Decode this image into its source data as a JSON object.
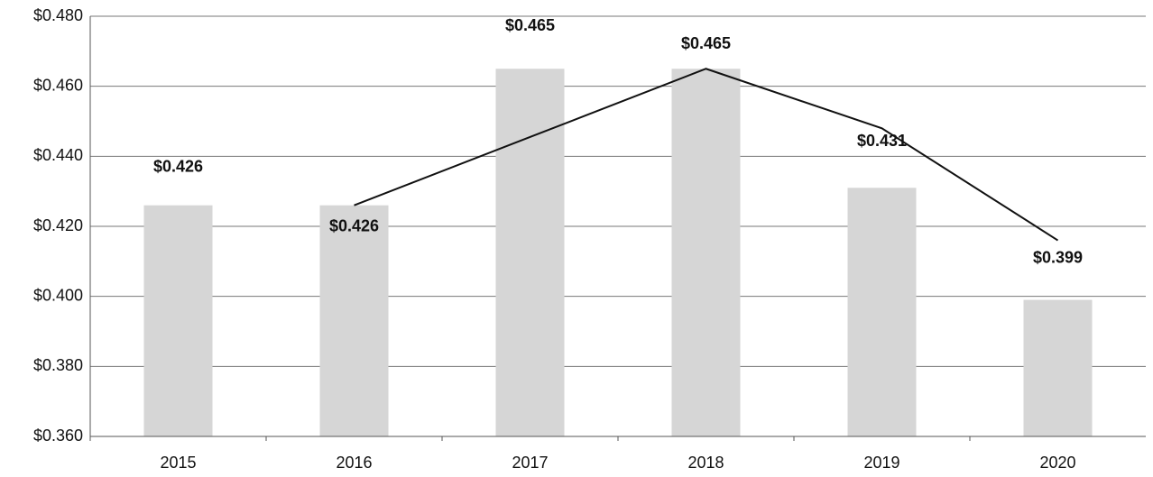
{
  "chart_data": {
    "type": "bar",
    "categories": [
      "2015",
      "2016",
      "2017",
      "2018",
      "2019",
      "2020"
    ],
    "series": [
      {
        "type": "bar",
        "color": "#d6d6d6",
        "values": [
          0.426,
          0.426,
          0.465,
          0.465,
          0.431,
          0.399
        ],
        "value_labels": [
          "$0.426",
          "$0.426",
          "$0.465",
          "$0.465",
          "$0.431",
          "$0.399"
        ]
      },
      {
        "type": "line",
        "color": "#111111",
        "values": [
          null,
          0.426,
          0.4455,
          0.465,
          0.448,
          0.416
        ]
      }
    ],
    "ylim": [
      0.36,
      0.48
    ],
    "yticks": [
      {
        "value": 0.36,
        "label": "$0.360"
      },
      {
        "value": 0.38,
        "label": "$0.380"
      },
      {
        "value": 0.4,
        "label": "$0.400"
      },
      {
        "value": 0.42,
        "label": "$0.420"
      },
      {
        "value": 0.44,
        "label": "$0.440"
      },
      {
        "value": 0.46,
        "label": "$0.460"
      },
      {
        "value": 0.48,
        "label": "$0.480"
      }
    ],
    "grid": true
  }
}
